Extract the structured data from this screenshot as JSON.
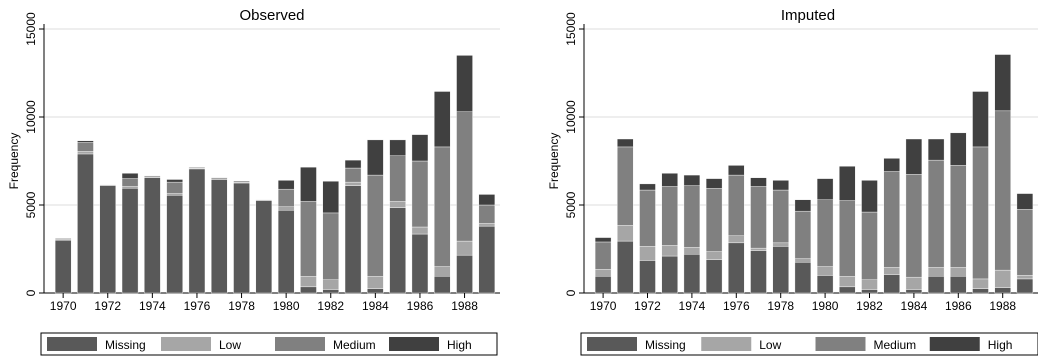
{
  "chart_data": [
    {
      "type": "bar",
      "stacked": true,
      "title": "Observed",
      "ylabel": "Frequency",
      "xlabel": "",
      "ylim": [
        0,
        15000
      ],
      "yticks": [
        0,
        5000,
        10000,
        15000
      ],
      "grid": true,
      "legend_position": "bottom",
      "categories": [
        "1970",
        "1971",
        "1972",
        "1973",
        "1974",
        "1975",
        "1976",
        "1977",
        "1978",
        "1979",
        "1980",
        "1981",
        "1982",
        "1983",
        "1984",
        "1985",
        "1986",
        "1987",
        "1988",
        "1989"
      ],
      "xtick_labels": [
        "1970",
        "1972",
        "1974",
        "1976",
        "1978",
        "1980",
        "1982",
        "1984",
        "1986",
        "1988"
      ],
      "series": [
        {
          "name": "Missing",
          "color": "#595959",
          "values": [
            3000,
            7900,
            6100,
            5950,
            6550,
            5550,
            7050,
            6450,
            6250,
            5250,
            4700,
            350,
            200,
            6100,
            250,
            4850,
            3350,
            950,
            2150,
            3800
          ]
        },
        {
          "name": "Low",
          "color": "#a6a6a6",
          "values": [
            50,
            150,
            50,
            100,
            50,
            100,
            50,
            50,
            50,
            50,
            200,
            600,
            550,
            200,
            700,
            350,
            400,
            550,
            800,
            150
          ]
        },
        {
          "name": "Medium",
          "color": "#808080",
          "values": [
            50,
            500,
            0,
            450,
            0,
            650,
            50,
            0,
            0,
            0,
            1000,
            4250,
            3800,
            800,
            5750,
            2600,
            3750,
            6800,
            7350,
            1050
          ]
        },
        {
          "name": "High",
          "color": "#404040",
          "values": [
            0,
            100,
            0,
            300,
            50,
            150,
            0,
            50,
            50,
            0,
            500,
            1950,
            1800,
            450,
            2000,
            900,
            1500,
            3150,
            3200,
            600
          ]
        }
      ]
    },
    {
      "type": "bar",
      "stacked": true,
      "title": "Imputed",
      "ylabel": "Frequency",
      "xlabel": "",
      "ylim": [
        0,
        15000
      ],
      "yticks": [
        0,
        5000,
        10000,
        15000
      ],
      "grid": true,
      "legend_position": "bottom",
      "categories": [
        "1970",
        "1971",
        "1972",
        "1973",
        "1974",
        "1975",
        "1976",
        "1977",
        "1978",
        "1979",
        "1980",
        "1981",
        "1982",
        "1983",
        "1984",
        "1985",
        "1986",
        "1987",
        "1988",
        "1989"
      ],
      "xtick_labels": [
        "1970",
        "1972",
        "1974",
        "1976",
        "1978",
        "1980",
        "1982",
        "1984",
        "1986",
        "1988"
      ],
      "series": [
        {
          "name": "Missing",
          "color": "#595959",
          "values": [
            950,
            2950,
            1850,
            2100,
            2200,
            1900,
            2850,
            2400,
            2650,
            1750,
            1000,
            350,
            200,
            1050,
            200,
            950,
            950,
            250,
            300,
            800
          ]
        },
        {
          "name": "Low",
          "color": "#a6a6a6",
          "values": [
            400,
            900,
            800,
            600,
            400,
            450,
            400,
            150,
            200,
            200,
            500,
            600,
            550,
            400,
            700,
            500,
            500,
            550,
            1000,
            200
          ]
        },
        {
          "name": "Medium",
          "color": "#808080",
          "values": [
            1550,
            4450,
            3200,
            3350,
            3500,
            3600,
            3450,
            3500,
            3000,
            2700,
            3800,
            4300,
            3850,
            5450,
            5850,
            6100,
            5800,
            7500,
            9050,
            3750
          ]
        },
        {
          "name": "High",
          "color": "#404040",
          "values": [
            250,
            450,
            350,
            750,
            600,
            550,
            550,
            500,
            550,
            650,
            1200,
            1950,
            1800,
            750,
            2000,
            1200,
            1850,
            3150,
            3200,
            900
          ]
        }
      ]
    }
  ]
}
